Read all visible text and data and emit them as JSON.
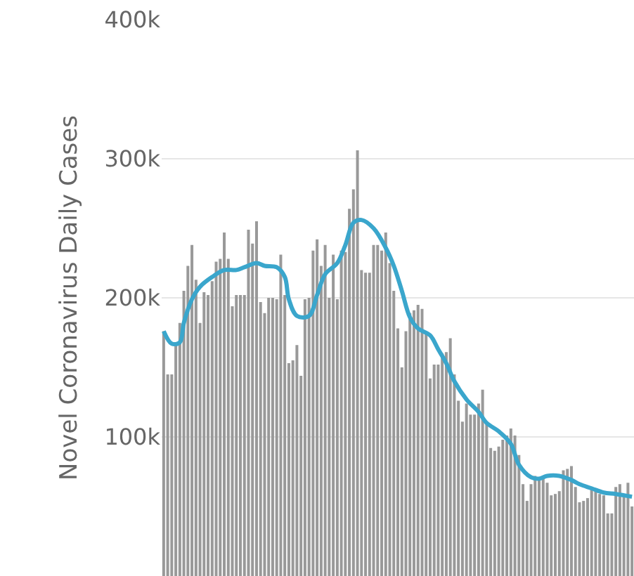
{
  "chart_data": {
    "type": "bar",
    "ylabel": "Novel Coronavirus Daily Cases",
    "categories": [
      null,
      null,
      null,
      null,
      null,
      null,
      null,
      null,
      null,
      null,
      null,
      null,
      null,
      null,
      null,
      null,
      null,
      null,
      null,
      null,
      null,
      null,
      null,
      null,
      null,
      null,
      null,
      null,
      null,
      null,
      null,
      null,
      null,
      null,
      null,
      null,
      null,
      null,
      null,
      null,
      null,
      null,
      null,
      null,
      null,
      null,
      null,
      null,
      null,
      null,
      null,
      null,
      null,
      null,
      null,
      null,
      null,
      null,
      null,
      null,
      null,
      null,
      null,
      null,
      null,
      null,
      null,
      null,
      null,
      null,
      null,
      null,
      null,
      null,
      null,
      null,
      null,
      null,
      null,
      null,
      null,
      null,
      null,
      null,
      null,
      null,
      null,
      null,
      null,
      null,
      null,
      null,
      null,
      null,
      null,
      null,
      null,
      null,
      null,
      null,
      null,
      null,
      null,
      null,
      null,
      null,
      null,
      null,
      null,
      null,
      null,
      null,
      null,
      null,
      null,
      null,
      null
    ],
    "series": [
      {
        "color": "#999999",
        "values": [
          176000,
          145000,
          145000,
          166000,
          182000,
          205000,
          223000,
          238000,
          213000,
          182000,
          204000,
          202000,
          212000,
          226000,
          228000,
          247000,
          228000,
          194000,
          202000,
          202000,
          202000,
          249000,
          239000,
          255000,
          197000,
          189000,
          200000,
          200000,
          199000,
          231000,
          202000,
          153000,
          155000,
          166000,
          144000,
          199000,
          200000,
          234000,
          242000,
          223000,
          238000,
          200000,
          231000,
          199000,
          234000,
          233000,
          264000,
          278000,
          306000,
          220000,
          218000,
          218000,
          238000,
          238000,
          234000,
          247000,
          225000,
          205000,
          178000,
          150000,
          176000,
          189000,
          191000,
          195000,
          192000,
          174000,
          142000,
          152000,
          152000,
          160000,
          161000,
          171000,
          145000,
          126000,
          111000,
          124000,
          116000,
          116000,
          124000,
          134000,
          110000,
          92000,
          90000,
          93000,
          98000,
          101000,
          106000,
          101000,
          87000,
          66000,
          54000,
          66000,
          72000,
          71000,
          71000,
          67000,
          58000,
          59000,
          61000,
          76000,
          77000,
          79000,
          64000,
          53000,
          54000,
          56000,
          64000,
          63000,
          59000,
          58000,
          45000,
          45000,
          64000,
          66000,
          59000,
          67000,
          50000
        ]
      },
      {
        "type": "line",
        "color": "#3aa6cc",
        "values": [
          176000,
          null,
          167000,
          null,
          168000,
          182000,
          null,
          199000,
          null,
          208000,
          null,
          null,
          215000,
          null,
          null,
          220000,
          null,
          null,
          220000,
          null,
          222000,
          null,
          null,
          225000,
          null,
          223000,
          null,
          null,
          222000,
          null,
          215000,
          199000,
          null,
          187000,
          null,
          null,
          187000,
          null,
          202000,
          null,
          217000,
          null,
          null,
          225000,
          null,
          238000,
          null,
          254000,
          null,
          256000,
          null,
          null,
          250000,
          null,
          null,
          236000,
          null,
          223000,
          null,
          205000,
          null,
          186000,
          null,
          178000,
          null,
          null,
          173000,
          null,
          163000,
          null,
          153000,
          null,
          140000,
          null,
          null,
          127000,
          null,
          null,
          118000,
          null,
          110000,
          null,
          null,
          104000,
          null,
          null,
          95000,
          null,
          80000,
          null,
          null,
          71000,
          null,
          70000,
          null,
          72000,
          null,
          null,
          72000,
          null,
          null,
          69000,
          null,
          66000,
          null,
          null,
          63000,
          null,
          null,
          60000,
          null,
          null,
          59000,
          null,
          null,
          null,
          57000
        ]
      }
    ],
    "ylim": [
      0,
      400000
    ],
    "yticks": [
      {
        "value": 100000,
        "label": "100k"
      },
      {
        "value": 200000,
        "label": "200k"
      },
      {
        "value": 300000,
        "label": "300k"
      },
      {
        "value": 400000,
        "label": "400k"
      }
    ],
    "grid": "y",
    "tick_labels": "y"
  }
}
